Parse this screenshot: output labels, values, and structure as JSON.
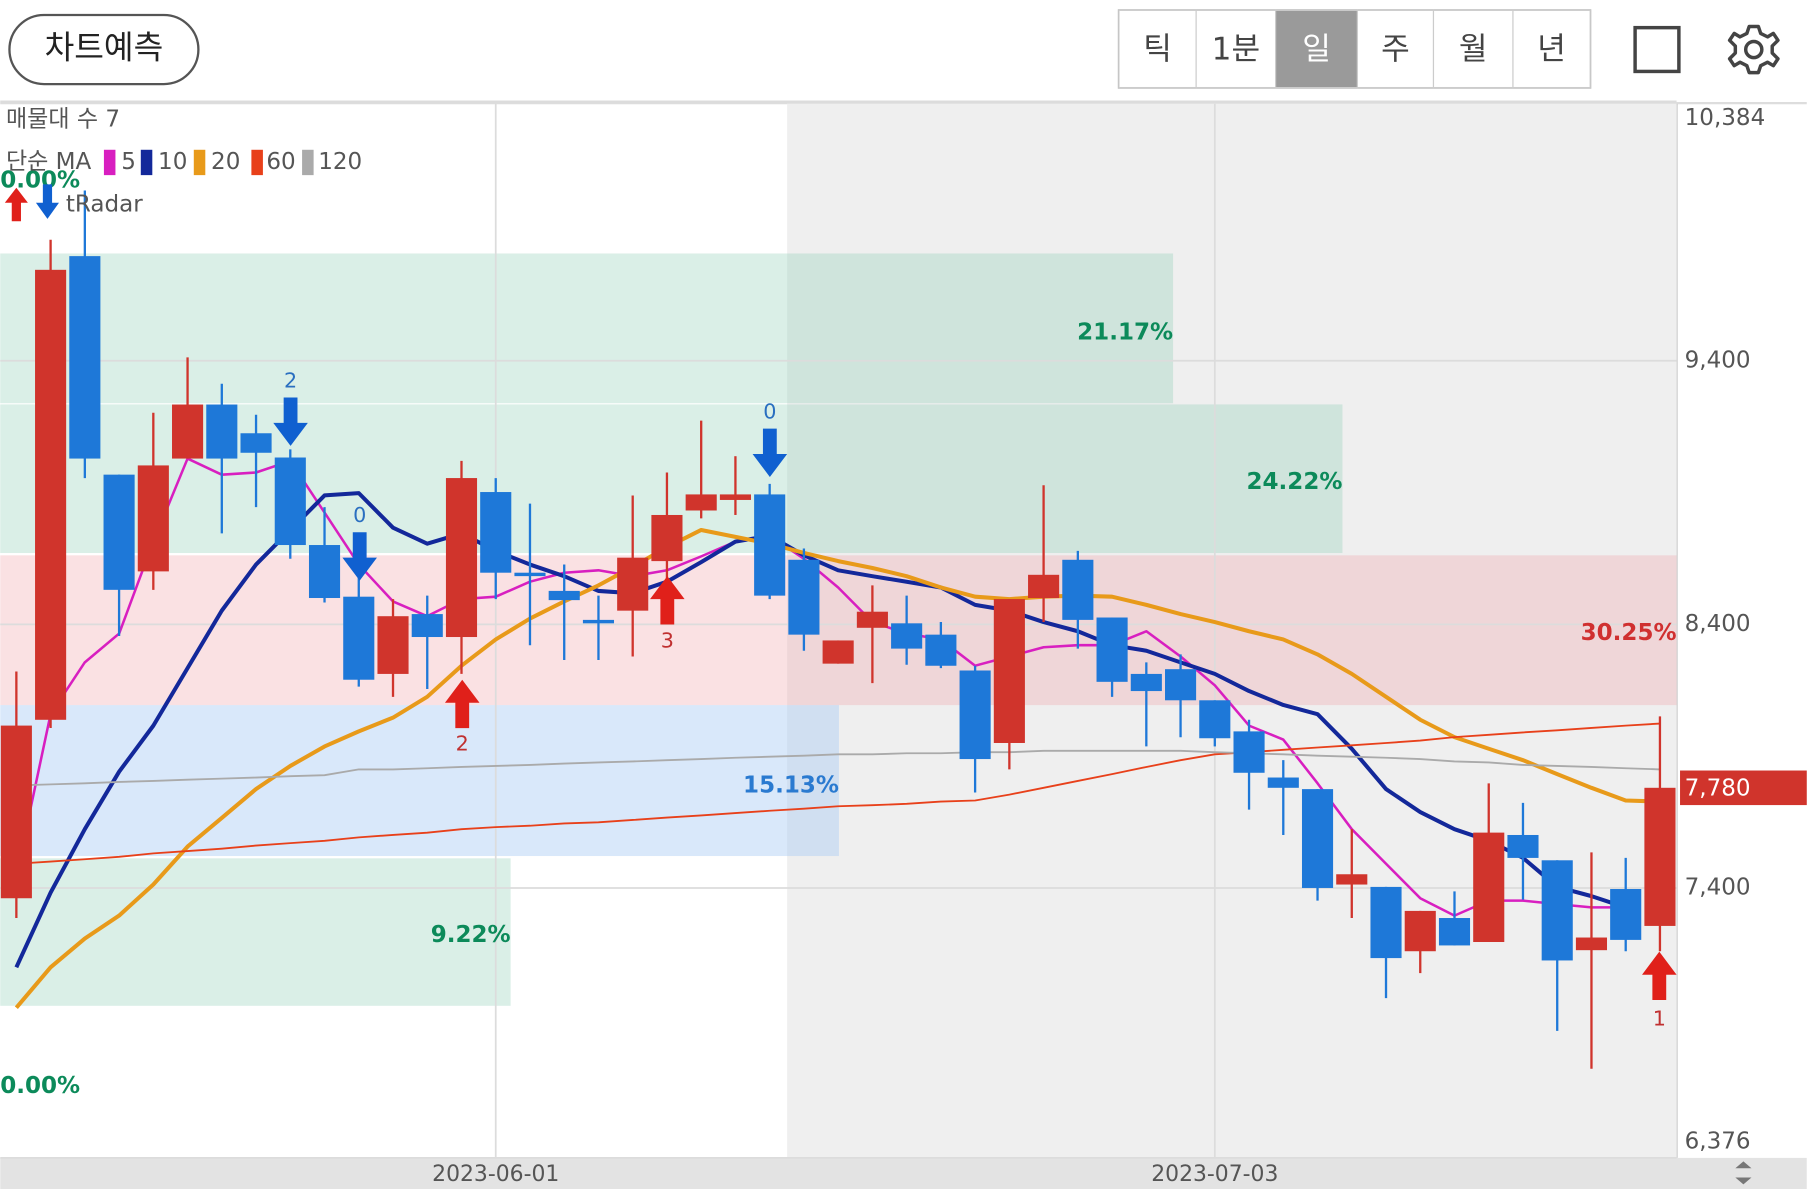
{
  "toolbar": {
    "predict_button": "차트예측",
    "tabs": [
      "틱",
      "1분",
      "일",
      "주",
      "월",
      "년"
    ],
    "selected_tab": 2
  },
  "chart_data": {
    "type": "candlestick",
    "volume_profile_label": "매물대 수 7",
    "legend_title": "단순 MA",
    "indicator": "tRadar",
    "categories": [
      null,
      null,
      null,
      null,
      null,
      null,
      null,
      null,
      null,
      null,
      null,
      null,
      null,
      null,
      "2023-06-01",
      null,
      null,
      null,
      null,
      null,
      null,
      null,
      null,
      null,
      null,
      null,
      null,
      null,
      null,
      null,
      null,
      null,
      null,
      null,
      null,
      "2023-07-03",
      null,
      null,
      null,
      null,
      null,
      null,
      null,
      null,
      null,
      null,
      null,
      null,
      null
    ],
    "open": [
      7361,
      8038,
      9797,
      8968,
      8601,
      9029,
      9234,
      9125,
      9033,
      8701,
      8505,
      8212,
      8439,
      8352,
      8902,
      8596,
      8527,
      8417,
      8452,
      8640,
      8832,
      8872,
      8893,
      8645,
      8251,
      8387,
      8404,
      8361,
      8225,
      7950,
      8500,
      8645,
      8426,
      8212,
      8230,
      8112,
      7994,
      7819,
      7775,
      7413,
      7404,
      7160,
      7286,
      7195,
      7601,
      7505,
      7164,
      7396,
      7256
    ],
    "high": [
      8221,
      9859,
      10046,
      8968,
      9203,
      9413,
      9313,
      9195,
      9064,
      8845,
      8583,
      8496,
      8509,
      9020,
      8955,
      8858,
      8627,
      8509,
      8889,
      8976,
      9173,
      9038,
      8933,
      8688,
      8339,
      8548,
      8509,
      8409,
      8243,
      8496,
      8928,
      8679,
      8426,
      8256,
      8286,
      8112,
      8038,
      7885,
      7775,
      7623,
      7404,
      7313,
      7387,
      7797,
      7723,
      7505,
      7535,
      7514,
      8051
    ],
    "low": [
      7286,
      8007,
      8955,
      8356,
      8531,
      9029,
      8745,
      8845,
      8649,
      8483,
      8164,
      8125,
      8155,
      8212,
      8496,
      8321,
      8265,
      8265,
      8278,
      8409,
      8802,
      8815,
      8496,
      8300,
      8251,
      8177,
      8247,
      8234,
      7762,
      7850,
      8409,
      8308,
      8125,
      7937,
      7972,
      7937,
      7697,
      7601,
      7352,
      7286,
      6982,
      7077,
      7182,
      7195,
      7356,
      6858,
      6714,
      7160,
      7160
    ],
    "close": [
      8016,
      9745,
      9029,
      8531,
      9003,
      9234,
      9029,
      9051,
      8701,
      8500,
      8190,
      8431,
      8352,
      8955,
      8596,
      8583,
      8492,
      8404,
      8653,
      8815,
      8893,
      8893,
      8509,
      8361,
      8339,
      8448,
      8308,
      8243,
      7889,
      8496,
      8588,
      8417,
      8182,
      8147,
      8112,
      7968,
      7837,
      7780,
      7400,
      7452,
      7134,
      7313,
      7182,
      7610,
      7514,
      7125,
      7212,
      7203,
      7780
    ],
    "up_color": "#d0342c",
    "down_color": "#1e78d8",
    "ylim": [
      6376,
      10384
    ],
    "yticks": [
      {
        "value": 10384,
        "label": "10,384"
      },
      {
        "value": 9400,
        "label": "9,400"
      },
      {
        "value": 8400,
        "label": "8,400"
      },
      {
        "value": 7400,
        "label": "7,400"
      },
      {
        "value": 6376,
        "label": "6,376"
      }
    ],
    "current": {
      "value": 7780,
      "label": "7,780"
    },
    "grid": true,
    "series": [
      {
        "name": "5",
        "color": "#d81fc0",
        "values": [
          7448,
          8059,
          8256,
          8365,
          8714,
          9029,
          8968,
          8976,
          9020,
          8824,
          8627,
          8487,
          8431,
          8496,
          8505,
          8562,
          8596,
          8605,
          8583,
          8605,
          8658,
          8714,
          8736,
          8649,
          8540,
          8409,
          8365,
          8343,
          8243,
          8278,
          8313,
          8321,
          8321,
          8374,
          8278,
          8169,
          8016,
          7963,
          7797,
          7623,
          7492,
          7361,
          7295,
          7352,
          7352,
          7339,
          7326,
          7326,
          null
        ]
      },
      {
        "name": "10",
        "color": "#13289a",
        "values": [
          7099,
          7382,
          7623,
          7841,
          8016,
          8234,
          8452,
          8627,
          8758,
          8889,
          8898,
          8767,
          8706,
          8745,
          8679,
          8627,
          8583,
          8527,
          8518,
          8562,
          8636,
          8714,
          8736,
          8662,
          8605,
          8583,
          8562,
          8540,
          8474,
          8452,
          8409,
          8374,
          8321,
          8300,
          8256,
          8212,
          8147,
          8094,
          8059,
          7928,
          7775,
          7688,
          7623,
          7579,
          7514,
          7404,
          7369,
          7326,
          null
        ]
      },
      {
        "name": "20",
        "color": "#e89a1a",
        "values": [
          6946,
          7099,
          7208,
          7295,
          7413,
          7557,
          7666,
          7775,
          7863,
          7937,
          7994,
          8046,
          8125,
          8243,
          8343,
          8422,
          8487,
          8548,
          8618,
          8693,
          8758,
          8732,
          8706,
          8671,
          8640,
          8614,
          8583,
          8540,
          8505,
          8496,
          8505,
          8509,
          8505,
          8474,
          8439,
          8409,
          8374,
          8343,
          8286,
          8212,
          8125,
          8038,
          7972,
          7928,
          7885,
          7832,
          7780,
          7732,
          7728
        ]
      },
      {
        "name": "60",
        "color": "#e8401a",
        "values": [
          7492,
          7500,
          7509,
          7518,
          7531,
          7540,
          7549,
          7561,
          7570,
          7579,
          7592,
          7601,
          7610,
          7623,
          7631,
          7636,
          7645,
          7649,
          7658,
          7667,
          7675,
          7684,
          7693,
          7701,
          7710,
          7714,
          7719,
          7728,
          7732,
          7754,
          7780,
          7806,
          7832,
          7859,
          7885,
          7907,
          7915,
          7924,
          7933,
          7941,
          7950,
          7959,
          7972,
          7981,
          7990,
          7998,
          8007,
          8016,
          8024
        ]
      },
      {
        "name": "120",
        "color": "#aaaaaa",
        "values": [
          7789,
          7793,
          7797,
          7802,
          7806,
          7811,
          7815,
          7819,
          7824,
          7828,
          7850,
          7850,
          7854,
          7859,
          7863,
          7867,
          7872,
          7876,
          7880,
          7885,
          7889,
          7894,
          7898,
          7902,
          7907,
          7907,
          7911,
          7911,
          7915,
          7915,
          7920,
          7920,
          7920,
          7920,
          7920,
          7915,
          7911,
          7907,
          7902,
          7898,
          7894,
          7889,
          7880,
          7876,
          7867,
          7863,
          7859,
          7854,
          7850
        ]
      }
    ],
    "annotations": [
      {
        "label": "0.00%",
        "color": "#0c8a5a"
      },
      {
        "label": "21.17%",
        "color": "#0c8a5a"
      },
      {
        "label": "24.22%",
        "color": "#0c8a5a"
      },
      {
        "label": "30.25%",
        "color": "#d03030"
      },
      {
        "label": "15.13%",
        "color": "#2a7ad0"
      },
      {
        "label": "9.22%",
        "color": "#0c8a5a"
      },
      {
        "label": "0.00%",
        "color": "#0c8a5a"
      }
    ],
    "signals": [
      {
        "direction": "down",
        "label": "2"
      },
      {
        "direction": "down",
        "label": "0"
      },
      {
        "direction": "up",
        "label": "2"
      },
      {
        "direction": "up",
        "label": "3"
      },
      {
        "direction": "down",
        "label": "0"
      },
      {
        "direction": "up",
        "label": "1"
      }
    ]
  }
}
